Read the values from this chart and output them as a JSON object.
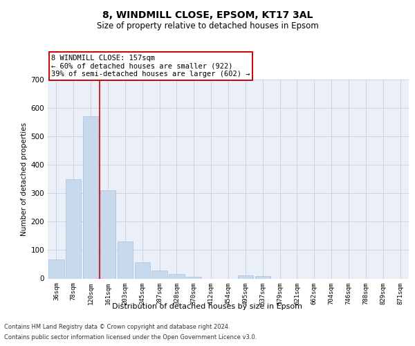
{
  "title": "8, WINDMILL CLOSE, EPSOM, KT17 3AL",
  "subtitle": "Size of property relative to detached houses in Epsom",
  "xlabel": "Distribution of detached houses by size in Epsom",
  "ylabel": "Number of detached properties",
  "bar_color": "#c8d8ed",
  "bar_edge_color": "#a8c0de",
  "grid_color": "#c8d4e4",
  "bg_color": "#eaeff8",
  "marker_line_color": "#cc0000",
  "annotation_text": "8 WINDMILL CLOSE: 157sqm\n← 60% of detached houses are smaller (922)\n39% of semi-detached houses are larger (602) →",
  "annotation_box_color": "#ffffff",
  "annotation_box_edge": "#cc0000",
  "categories": [
    "36sqm",
    "78sqm",
    "120sqm",
    "161sqm",
    "203sqm",
    "245sqm",
    "287sqm",
    "328sqm",
    "370sqm",
    "412sqm",
    "454sqm",
    "495sqm",
    "537sqm",
    "579sqm",
    "621sqm",
    "662sqm",
    "704sqm",
    "746sqm",
    "788sqm",
    "829sqm",
    "871sqm"
  ],
  "values": [
    68,
    350,
    570,
    310,
    130,
    57,
    28,
    15,
    7,
    0,
    0,
    10,
    8,
    0,
    0,
    0,
    0,
    0,
    0,
    0,
    0
  ],
  "ylim": [
    0,
    700
  ],
  "yticks": [
    0,
    100,
    200,
    300,
    400,
    500,
    600,
    700
  ],
  "footer_line1": "Contains HM Land Registry data © Crown copyright and database right 2024.",
  "footer_line2": "Contains public sector information licensed under the Open Government Licence v3.0."
}
